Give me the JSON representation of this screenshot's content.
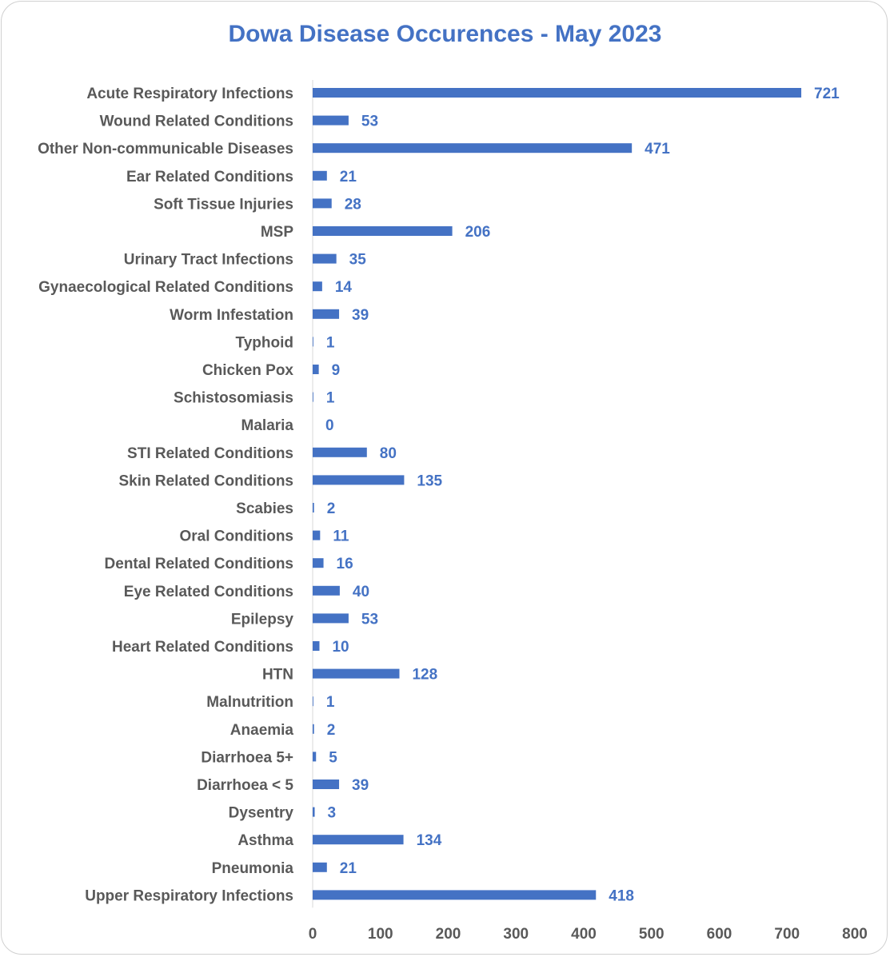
{
  "chart_data": {
    "type": "bar",
    "orientation": "horizontal",
    "title": "Dowa Disease Occurences - May 2023",
    "categories": [
      "Acute Respiratory Infections",
      "Wound Related Conditions",
      "Other Non-communicable Diseases",
      "Ear Related Conditions",
      "Soft Tissue Injuries",
      "MSP",
      "Urinary Tract Infections",
      "Gynaecological Related Conditions",
      "Worm Infestation",
      "Typhoid",
      "Chicken Pox",
      "Schistosomiasis",
      "Malaria",
      "STI Related Conditions",
      "Skin Related Conditions",
      "Scabies",
      "Oral Conditions",
      "Dental Related Conditions",
      "Eye Related Conditions",
      "Epilepsy",
      "Heart Related Conditions",
      "HTN",
      "Malnutrition",
      "Anaemia",
      "Diarrhoea 5+",
      "Diarrhoea < 5",
      "Dysentry",
      "Asthma",
      "Pneumonia",
      "Upper Respiratory Infections"
    ],
    "values": [
      721,
      53,
      471,
      21,
      28,
      206,
      35,
      14,
      39,
      1,
      9,
      1,
      0,
      80,
      135,
      2,
      11,
      16,
      40,
      53,
      10,
      128,
      1,
      2,
      5,
      39,
      3,
      134,
      21,
      418
    ],
    "xlim": [
      0,
      800
    ],
    "xticks": [
      0,
      100,
      200,
      300,
      400,
      500,
      600,
      700,
      800
    ],
    "grid": false,
    "legend": "none",
    "colors": {
      "bar": "#4472C4",
      "title": "#4472C4",
      "labels": "#595959",
      "axis": "#d9d9d9"
    }
  }
}
